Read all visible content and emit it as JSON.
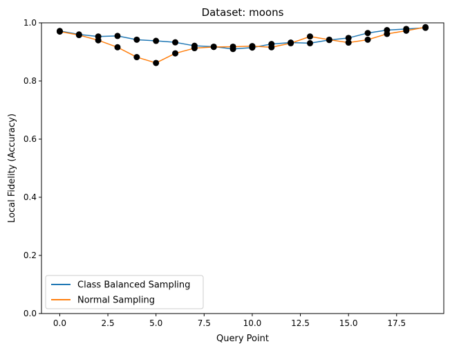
{
  "chart_data": {
    "type": "line",
    "title": "Dataset: moons",
    "xlabel": "Query Point",
    "ylabel": "Local Fidelity (Accuracy)",
    "xlim": [
      -0.95,
      19.95
    ],
    "ylim": [
      0.0,
      1.0
    ],
    "xticks": [
      0.0,
      2.5,
      5.0,
      7.5,
      10.0,
      12.5,
      15.0,
      17.5
    ],
    "xtick_labels": [
      "0.0",
      "2.5",
      "5.0",
      "7.5",
      "10.0",
      "12.5",
      "15.0",
      "17.5"
    ],
    "yticks": [
      0.0,
      0.2,
      0.4,
      0.6,
      0.8,
      1.0
    ],
    "ytick_labels": [
      "0.0",
      "0.2",
      "0.4",
      "0.6",
      "0.8",
      "1.0"
    ],
    "grid": false,
    "legend_position": "lower-left",
    "marker_color": "#000000",
    "x": [
      0,
      1,
      2,
      3,
      4,
      5,
      6,
      7,
      8,
      9,
      10,
      11,
      12,
      13,
      14,
      15,
      16,
      17,
      18,
      19
    ],
    "series": [
      {
        "name": "Class Balanced Sampling",
        "color": "#1f77b4",
        "values": [
          0.972,
          0.96,
          0.953,
          0.955,
          0.942,
          0.938,
          0.933,
          0.921,
          0.918,
          0.91,
          0.915,
          0.927,
          0.932,
          0.93,
          0.941,
          0.948,
          0.965,
          0.975,
          0.979,
          0.983
        ]
      },
      {
        "name": "Normal Sampling",
        "color": "#ff7f0e",
        "values": [
          0.97,
          0.958,
          0.94,
          0.916,
          0.882,
          0.862,
          0.895,
          0.913,
          0.917,
          0.918,
          0.92,
          0.916,
          0.93,
          0.953,
          0.942,
          0.932,
          0.942,
          0.962,
          0.973,
          0.985
        ]
      }
    ]
  }
}
